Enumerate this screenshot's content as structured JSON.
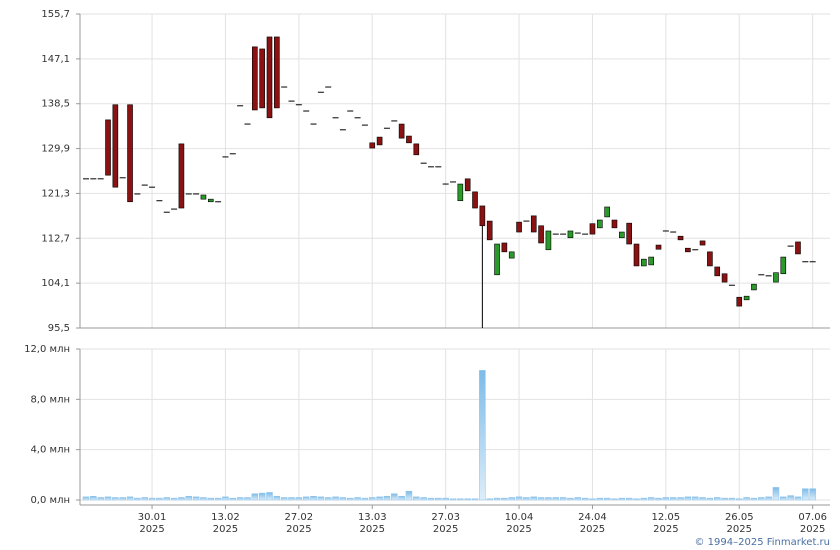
{
  "chart_data": {
    "type": "candlestick",
    "categories": [
      null,
      null,
      null,
      null,
      null,
      null,
      null,
      null,
      null,
      "30.01",
      null,
      null,
      null,
      null,
      null,
      null,
      null,
      null,
      null,
      "13.02",
      null,
      null,
      null,
      null,
      null,
      null,
      null,
      null,
      null,
      "27.02",
      null,
      null,
      null,
      null,
      null,
      null,
      null,
      null,
      null,
      "13.03",
      null,
      null,
      null,
      null,
      null,
      null,
      null,
      null,
      null,
      "27.03",
      null,
      null,
      null,
      null,
      null,
      null,
      null,
      null,
      null,
      "10.04",
      null,
      null,
      null,
      null,
      null,
      null,
      null,
      null,
      null,
      "24.04",
      null,
      null,
      null,
      null,
      null,
      null,
      null,
      null,
      null,
      "12.05",
      null,
      null,
      null,
      null,
      null,
      null,
      null,
      null,
      null,
      "26.05",
      null,
      null,
      null,
      null,
      null,
      null,
      null,
      null,
      null,
      "07.06"
    ],
    "x_tick_year": "2025",
    "open": [
      124.1,
      124.1,
      124.1,
      135.4,
      138.3,
      124.3,
      138.3,
      121.2,
      122.9,
      122.5,
      119.9,
      117.7,
      118.3,
      130.8,
      121.2,
      121.2,
      120.2,
      119.7,
      119.7,
      128.3,
      128.9,
      138.1,
      134.6,
      149.4,
      149.0,
      151.3,
      151.3,
      141.7,
      139.0,
      138.3,
      137.1,
      134.6,
      140.7,
      141.7,
      135.8,
      133.5,
      137.1,
      135.8,
      134.4,
      131.0,
      132.1,
      133.8,
      135.2,
      134.6,
      132.3,
      130.8,
      127.1,
      126.4,
      126.4,
      123.1,
      123.5,
      119.9,
      124.1,
      121.6,
      118.9,
      116.0,
      105.7,
      111.8,
      108.9,
      115.8,
      116.0,
      117.0,
      115.1,
      110.5,
      113.5,
      113.5,
      112.8,
      113.7,
      113.5,
      115.5,
      114.7,
      116.8,
      116.2,
      112.8,
      115.6,
      111.6,
      107.4,
      107.6,
      111.4,
      114.1,
      113.9,
      113.1,
      110.8,
      110.5,
      112.2,
      110.1,
      107.2,
      105.9,
      103.7,
      101.4,
      100.9,
      102.8,
      105.7,
      105.5,
      104.3,
      105.9,
      111.2,
      112.0,
      108.2,
      108.2
    ],
    "high": [
      124.1,
      124.1,
      124.1,
      135.4,
      138.3,
      124.3,
      138.3,
      121.2,
      122.9,
      122.5,
      119.9,
      117.7,
      118.3,
      130.8,
      121.2,
      121.2,
      121.0,
      120.2,
      119.7,
      128.3,
      128.9,
      138.1,
      134.6,
      149.4,
      149.0,
      151.3,
      151.3,
      141.7,
      139.0,
      138.3,
      137.1,
      134.6,
      140.7,
      141.7,
      135.8,
      133.5,
      137.1,
      135.8,
      134.4,
      131.0,
      132.1,
      133.8,
      135.2,
      134.6,
      132.3,
      130.8,
      127.1,
      126.4,
      126.4,
      123.1,
      123.5,
      123.1,
      124.1,
      121.6,
      118.9,
      116.0,
      111.6,
      111.8,
      110.1,
      115.8,
      116.0,
      117.0,
      115.1,
      114.1,
      113.5,
      113.5,
      114.1,
      113.7,
      113.5,
      115.5,
      116.2,
      118.7,
      116.2,
      113.9,
      115.6,
      111.6,
      108.7,
      109.1,
      111.4,
      114.1,
      113.9,
      113.1,
      110.8,
      110.5,
      112.2,
      110.1,
      107.2,
      105.9,
      103.7,
      101.4,
      101.6,
      103.9,
      105.7,
      105.5,
      106.1,
      109.1,
      111.2,
      112.0,
      108.2,
      108.2
    ],
    "low": [
      124.1,
      124.1,
      124.1,
      124.8,
      122.5,
      124.3,
      119.7,
      121.2,
      122.9,
      122.5,
      119.9,
      117.7,
      118.3,
      118.5,
      121.2,
      121.2,
      120.2,
      119.7,
      119.7,
      128.3,
      128.9,
      138.1,
      134.6,
      137.3,
      137.7,
      135.8,
      137.7,
      141.7,
      139.0,
      138.3,
      137.1,
      134.6,
      140.7,
      141.7,
      135.8,
      133.5,
      137.1,
      135.8,
      134.4,
      130.0,
      130.6,
      133.8,
      135.2,
      131.9,
      131.0,
      128.7,
      127.1,
      126.4,
      126.4,
      123.1,
      123.5,
      119.9,
      121.8,
      118.5,
      95.5,
      112.4,
      105.7,
      110.1,
      108.9,
      113.9,
      116.0,
      113.9,
      111.8,
      110.5,
      113.5,
      113.5,
      112.8,
      113.7,
      113.5,
      113.5,
      114.7,
      116.8,
      114.7,
      112.8,
      111.6,
      107.4,
      107.4,
      107.6,
      110.6,
      114.1,
      113.9,
      112.4,
      110.1,
      110.5,
      111.4,
      107.4,
      105.5,
      104.3,
      103.7,
      99.7,
      100.9,
      102.8,
      105.7,
      105.5,
      104.3,
      105.9,
      111.2,
      109.7,
      108.2,
      108.2
    ],
    "close": [
      124.1,
      124.1,
      124.1,
      124.8,
      122.5,
      124.3,
      119.7,
      121.2,
      122.9,
      122.5,
      119.9,
      117.7,
      118.3,
      118.5,
      121.2,
      121.2,
      121.0,
      120.2,
      119.7,
      128.3,
      128.9,
      138.1,
      134.6,
      137.3,
      137.7,
      135.8,
      137.7,
      141.7,
      139.0,
      138.3,
      137.1,
      134.6,
      140.7,
      141.7,
      135.8,
      133.5,
      137.1,
      135.8,
      134.4,
      130.0,
      130.6,
      133.8,
      135.2,
      131.9,
      131.0,
      128.7,
      127.1,
      126.4,
      126.4,
      123.1,
      123.5,
      123.1,
      121.8,
      118.5,
      115.1,
      112.4,
      111.6,
      110.1,
      110.1,
      113.9,
      116.0,
      113.9,
      111.8,
      114.1,
      113.5,
      113.5,
      114.1,
      113.7,
      113.5,
      113.5,
      116.2,
      118.7,
      114.7,
      113.9,
      111.6,
      107.4,
      108.7,
      109.1,
      110.6,
      114.1,
      113.9,
      112.4,
      110.1,
      110.5,
      111.4,
      107.4,
      105.5,
      104.3,
      103.7,
      99.7,
      101.6,
      103.9,
      105.7,
      105.5,
      106.1,
      109.1,
      111.2,
      109.7,
      108.2,
      108.2
    ],
    "volume": [
      0.25,
      0.3,
      0.2,
      0.25,
      0.2,
      0.2,
      0.25,
      0.15,
      0.2,
      0.15,
      0.15,
      0.2,
      0.15,
      0.2,
      0.3,
      0.25,
      0.2,
      0.15,
      0.15,
      0.25,
      0.15,
      0.2,
      0.2,
      0.5,
      0.55,
      0.6,
      0.3,
      0.2,
      0.2,
      0.2,
      0.25,
      0.3,
      0.25,
      0.2,
      0.25,
      0.2,
      0.15,
      0.2,
      0.15,
      0.2,
      0.25,
      0.3,
      0.5,
      0.3,
      0.7,
      0.25,
      0.2,
      0.15,
      0.15,
      0.15,
      0.1,
      0.1,
      0.1,
      0.1,
      10.3,
      0.1,
      0.15,
      0.15,
      0.2,
      0.25,
      0.2,
      0.25,
      0.2,
      0.2,
      0.2,
      0.2,
      0.15,
      0.2,
      0.15,
      0.1,
      0.15,
      0.15,
      0.1,
      0.15,
      0.15,
      0.1,
      0.15,
      0.2,
      0.15,
      0.2,
      0.2,
      0.2,
      0.25,
      0.25,
      0.2,
      0.15,
      0.2,
      0.15,
      0.15,
      0.1,
      0.2,
      0.15,
      0.2,
      0.25,
      1.0,
      0.25,
      0.35,
      0.25,
      0.9,
      0.9
    ],
    "up_color": "#2a9a2a",
    "down_color": "#8b1212",
    "volume_color": "#8ec3ea",
    "ylim": [
      95.5,
      155.7
    ],
    "yticks": [
      {
        "value": 95.5,
        "label": "95,5"
      },
      {
        "value": 104.1,
        "label": "104,1"
      },
      {
        "value": 112.7,
        "label": "112,7"
      },
      {
        "value": 121.3,
        "label": "121,3"
      },
      {
        "value": 129.9,
        "label": "129,9"
      },
      {
        "value": 138.5,
        "label": "138,5"
      },
      {
        "value": 147.1,
        "label": "147,1"
      },
      {
        "value": 155.7,
        "label": "155,7"
      }
    ],
    "volume_ylim": [
      0,
      12
    ],
    "volume_yticks": [
      {
        "value": 0,
        "label": "0,0 млн"
      },
      {
        "value": 4,
        "label": "4,0 млн"
      },
      {
        "value": 8,
        "label": "8,0 млн"
      },
      {
        "value": 12,
        "label": "12,0 млн"
      }
    ],
    "grid": true,
    "copyright": "© 1994–2025 Finmarket.ru"
  }
}
